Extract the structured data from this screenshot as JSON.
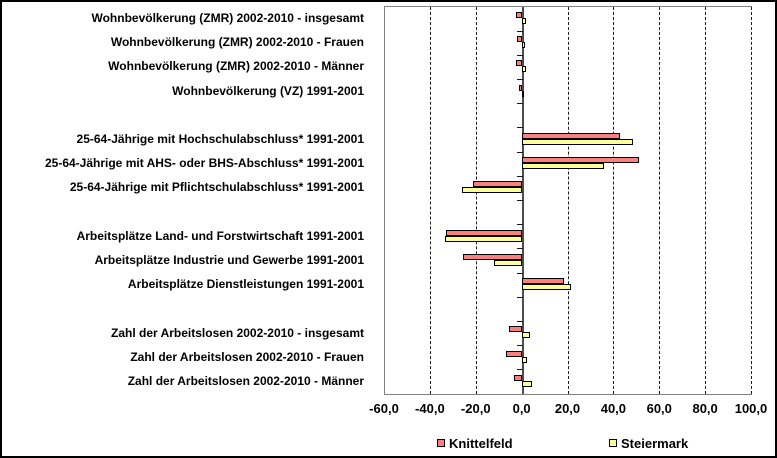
{
  "chart_data": {
    "type": "bar",
    "orientation": "horizontal",
    "title": "",
    "xlabel": "",
    "ylabel": "",
    "xlim": [
      -60,
      100
    ],
    "x_tick_labels": [
      "-60,0",
      "-40,0",
      "-20,0",
      "0,0",
      "20,0",
      "40,0",
      "60,0",
      "80,0",
      "100,0"
    ],
    "x_tick_values": [
      -60,
      -40,
      -20,
      0,
      20,
      40,
      60,
      80,
      100
    ],
    "grid": "vertical-dashed",
    "legend_position": "bottom",
    "categories": [
      "Wohnbevölkerung (ZMR) 2002-2010 - insgesamt",
      "Wohnbevölkerung (ZMR) 2002-2010 - Frauen",
      "Wohnbevölkerung (ZMR) 2002-2010 - Männer",
      "Wohnbevölkerung (VZ) 1991-2001",
      "25-64-Jährige mit Hochschulabschluss* 1991-2001",
      "25-64-Jährige mit AHS- oder BHS-Abschluss* 1991-2001",
      "25-64-Jährige mit Pflichtschulabschluss* 1991-2001",
      "Arbeitsplätze Land- und Forstwirtschaft 1991-2001",
      "Arbeitsplätze Industrie und Gewerbe 1991-2001",
      "Arbeitsplätze Dienstleistungen 1991-2001",
      "Zahl der Arbeitslosen 2002-2010 - insgesamt",
      "Zahl der Arbeitslosen 2002-2010 - Frauen",
      "Zahl der Arbeitslosen 2002-2010 - Männer"
    ],
    "group_breaks_after": [
      3,
      6,
      9
    ],
    "series": [
      {
        "name": "Knittelfeld",
        "color": "#FA8080",
        "values": [
          -2.3,
          -2.0,
          -2.6,
          -1.3,
          43.0,
          51.0,
          -21.0,
          -33.0,
          -25.5,
          18.5,
          -5.5,
          -7.0,
          -3.5
        ]
      },
      {
        "name": "Steiermark",
        "color": "#FFFF99",
        "values": [
          1.7,
          1.3,
          2.1,
          0.5,
          48.5,
          36.0,
          -26.0,
          -33.5,
          -12.0,
          21.5,
          3.5,
          2.5,
          4.5
        ]
      }
    ]
  },
  "legend": {
    "items": [
      {
        "label": "Knittelfeld",
        "color": "#FA8080"
      },
      {
        "label": "Steiermark",
        "color": "#FFFF99"
      }
    ]
  },
  "colors": {
    "series_1": "#FA8080",
    "series_2": "#FFFF99",
    "plot_border": "#808080",
    "gridline": "#1a1a1a",
    "zero_axis": "#4d4d4d",
    "bar_border": "#000000",
    "frame_border": "#000000",
    "background": "#ffffff"
  }
}
